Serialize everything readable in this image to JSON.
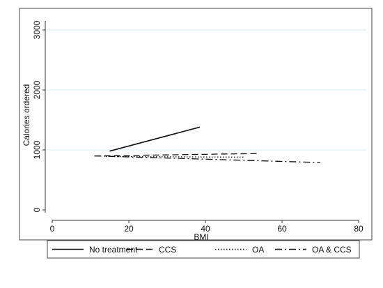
{
  "chart_data": {
    "type": "line",
    "title": "",
    "xlabel": "BMI",
    "ylabel": "Calories ordered",
    "xlim": [
      0,
      80
    ],
    "ylim": [
      0,
      3000
    ],
    "xticks": [
      0,
      20,
      40,
      60,
      80
    ],
    "yticks": [
      0,
      1000,
      2000,
      3000
    ],
    "grid": "horizontal",
    "legend_position": "bottom",
    "series": [
      {
        "name": "No treatment",
        "dash": "solid",
        "x": [
          15,
          38.5
        ],
        "y": [
          980,
          1380
        ]
      },
      {
        "name": "CCS",
        "dash": "dashed",
        "x": [
          11,
          53.5
        ],
        "y": [
          900,
          940
        ]
      },
      {
        "name": "OA",
        "dash": "dotted",
        "x": [
          14,
          50
        ],
        "y": [
          890,
          880
        ]
      },
      {
        "name": "OA & CCS",
        "dash": "dashdot",
        "x": [
          11,
          70
        ],
        "y": [
          900,
          790
        ]
      }
    ],
    "colors": {
      "line": "#111111",
      "grid": "#dfe8ee",
      "plot_bg": "#ffffff",
      "outer_bg": "#ffffff",
      "border": "#444444"
    }
  }
}
